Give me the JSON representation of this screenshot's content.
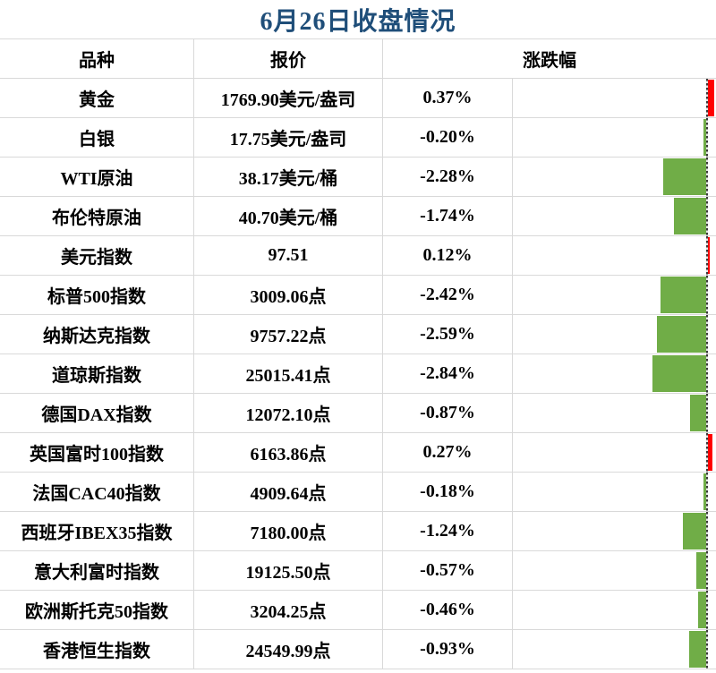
{
  "title": "6月26日收盘情况",
  "headers": {
    "variety": "品种",
    "quote": "报价",
    "change": "涨跌幅"
  },
  "colors": {
    "title_text": "#1F4E79",
    "positive_bar": "#FF0000",
    "negative_bar": "#70AD47",
    "gridline": "#D9D9D9",
    "axis_dash": "#3A3A3A"
  },
  "chart_data": {
    "type": "bar",
    "orientation": "horizontal",
    "title": "6月26日收盘情况",
    "legend": "none",
    "axis_position": "right-of-cell",
    "categories": [
      "黄金",
      "白银",
      "WTI原油",
      "布伦特原油",
      "美元指数",
      "标普500指数",
      "纳斯达克指数",
      "道琼斯指数",
      "德国DAX指数",
      "英国富时100指数",
      "法国CAC40指数",
      "西班牙IBEX35指数",
      "意大利富时指数",
      "欧洲斯托克50指数",
      "香港恒生指数"
    ],
    "quotes": [
      "1769.90美元/盎司",
      "17.75美元/盎司",
      "38.17美元/桶",
      "40.70美元/桶",
      "97.51",
      "3009.06点",
      "9757.22点",
      "25015.41点",
      "12072.10点",
      "6163.86点",
      "4909.64点",
      "7180.00点",
      "19125.50点",
      "3204.25点",
      "24549.99点"
    ],
    "values": [
      0.37,
      -0.2,
      -2.28,
      -1.74,
      0.12,
      -2.42,
      -2.59,
      -2.84,
      -0.87,
      0.27,
      -0.18,
      -1.24,
      -0.57,
      -0.46,
      -0.93
    ],
    "value_labels": [
      "0.37%",
      "-0.20%",
      "-2.28%",
      "-1.74%",
      "0.12%",
      "-2.42%",
      "-2.59%",
      "-2.84%",
      "-0.87%",
      "0.27%",
      "-0.18%",
      "-1.24%",
      "-0.57%",
      "-0.46%",
      "-0.93%"
    ],
    "unit": "%",
    "value_range_shown": [
      -2.84,
      0.37
    ]
  }
}
